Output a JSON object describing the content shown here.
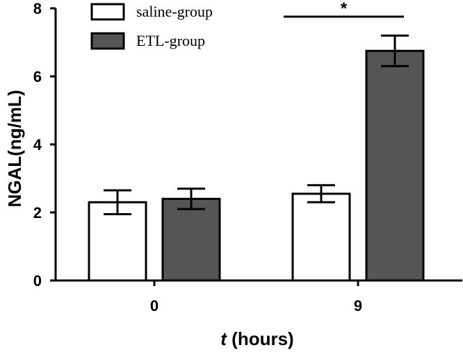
{
  "chart_data": {
    "type": "bar",
    "categories": [
      "0",
      "9"
    ],
    "series": [
      {
        "name": "saline-group",
        "color": "#ffffff",
        "values": [
          2.3,
          2.55
        ],
        "errors": [
          0.35,
          0.25
        ]
      },
      {
        "name": "ETL-group",
        "color": "#555555",
        "values": [
          2.4,
          6.75
        ],
        "errors": [
          0.3,
          0.45
        ]
      }
    ],
    "ylabel": "NGAL(ng/mL)",
    "xlabel_italic": "t",
    "xlabel_rest": " (hours)",
    "ylim": [
      0,
      8
    ],
    "yticks": [
      0,
      2,
      4,
      6,
      8
    ],
    "significance": {
      "label": "*",
      "category_index": 1
    },
    "legend_position": "top-left",
    "grid": false
  }
}
